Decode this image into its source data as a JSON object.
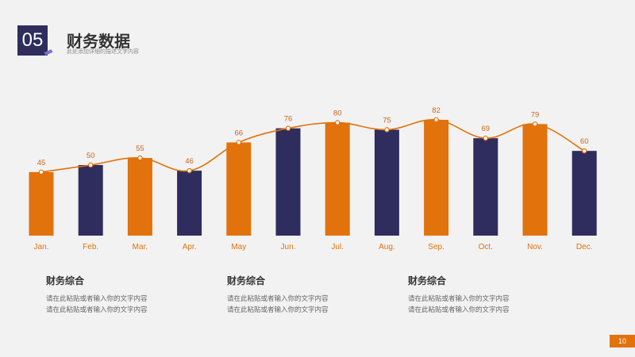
{
  "header": {
    "number": "05",
    "title": "财务数据",
    "subtitle": "此处添加详细的描述文字内容"
  },
  "chart_data": {
    "type": "bar",
    "categories": [
      "Jan.",
      "Feb.",
      "Mar.",
      "Apr.",
      "May",
      "Jun.",
      "Jul.",
      "Aug.",
      "Sep.",
      "Oct.",
      "Nov.",
      "Dec."
    ],
    "values": [
      45,
      50,
      55,
      46,
      66,
      76,
      80,
      75,
      82,
      69,
      79,
      60
    ],
    "line_values": [
      45,
      50,
      55,
      46,
      66,
      76,
      80,
      75,
      82,
      69,
      79,
      60
    ],
    "bar_colors": [
      "#e2720c",
      "#2e2d5e",
      "#e2720c",
      "#2e2d5e",
      "#e2720c",
      "#2e2d5e",
      "#e2720c",
      "#2e2d5e",
      "#e2720c",
      "#2e2d5e",
      "#e2720c",
      "#2e2d5e"
    ],
    "line_color": "#e2720c",
    "ylim": [
      0,
      100
    ],
    "grid": false
  },
  "summaries": [
    {
      "title": "财务综合",
      "line1": "请在此粘贴或者输入你的文字内容",
      "line2": "请在此粘贴或者输入你的文字内容"
    },
    {
      "title": "财务综合",
      "line1": "请在此粘贴或者输入你的文字内容",
      "line2": "请在此粘贴或者输入你的文字内容"
    },
    {
      "title": "财务综合",
      "line1": "请在此粘贴或者输入你的文字内容",
      "line2": "请在此粘贴或者输入你的文字内容"
    }
  ],
  "page_number": "10"
}
